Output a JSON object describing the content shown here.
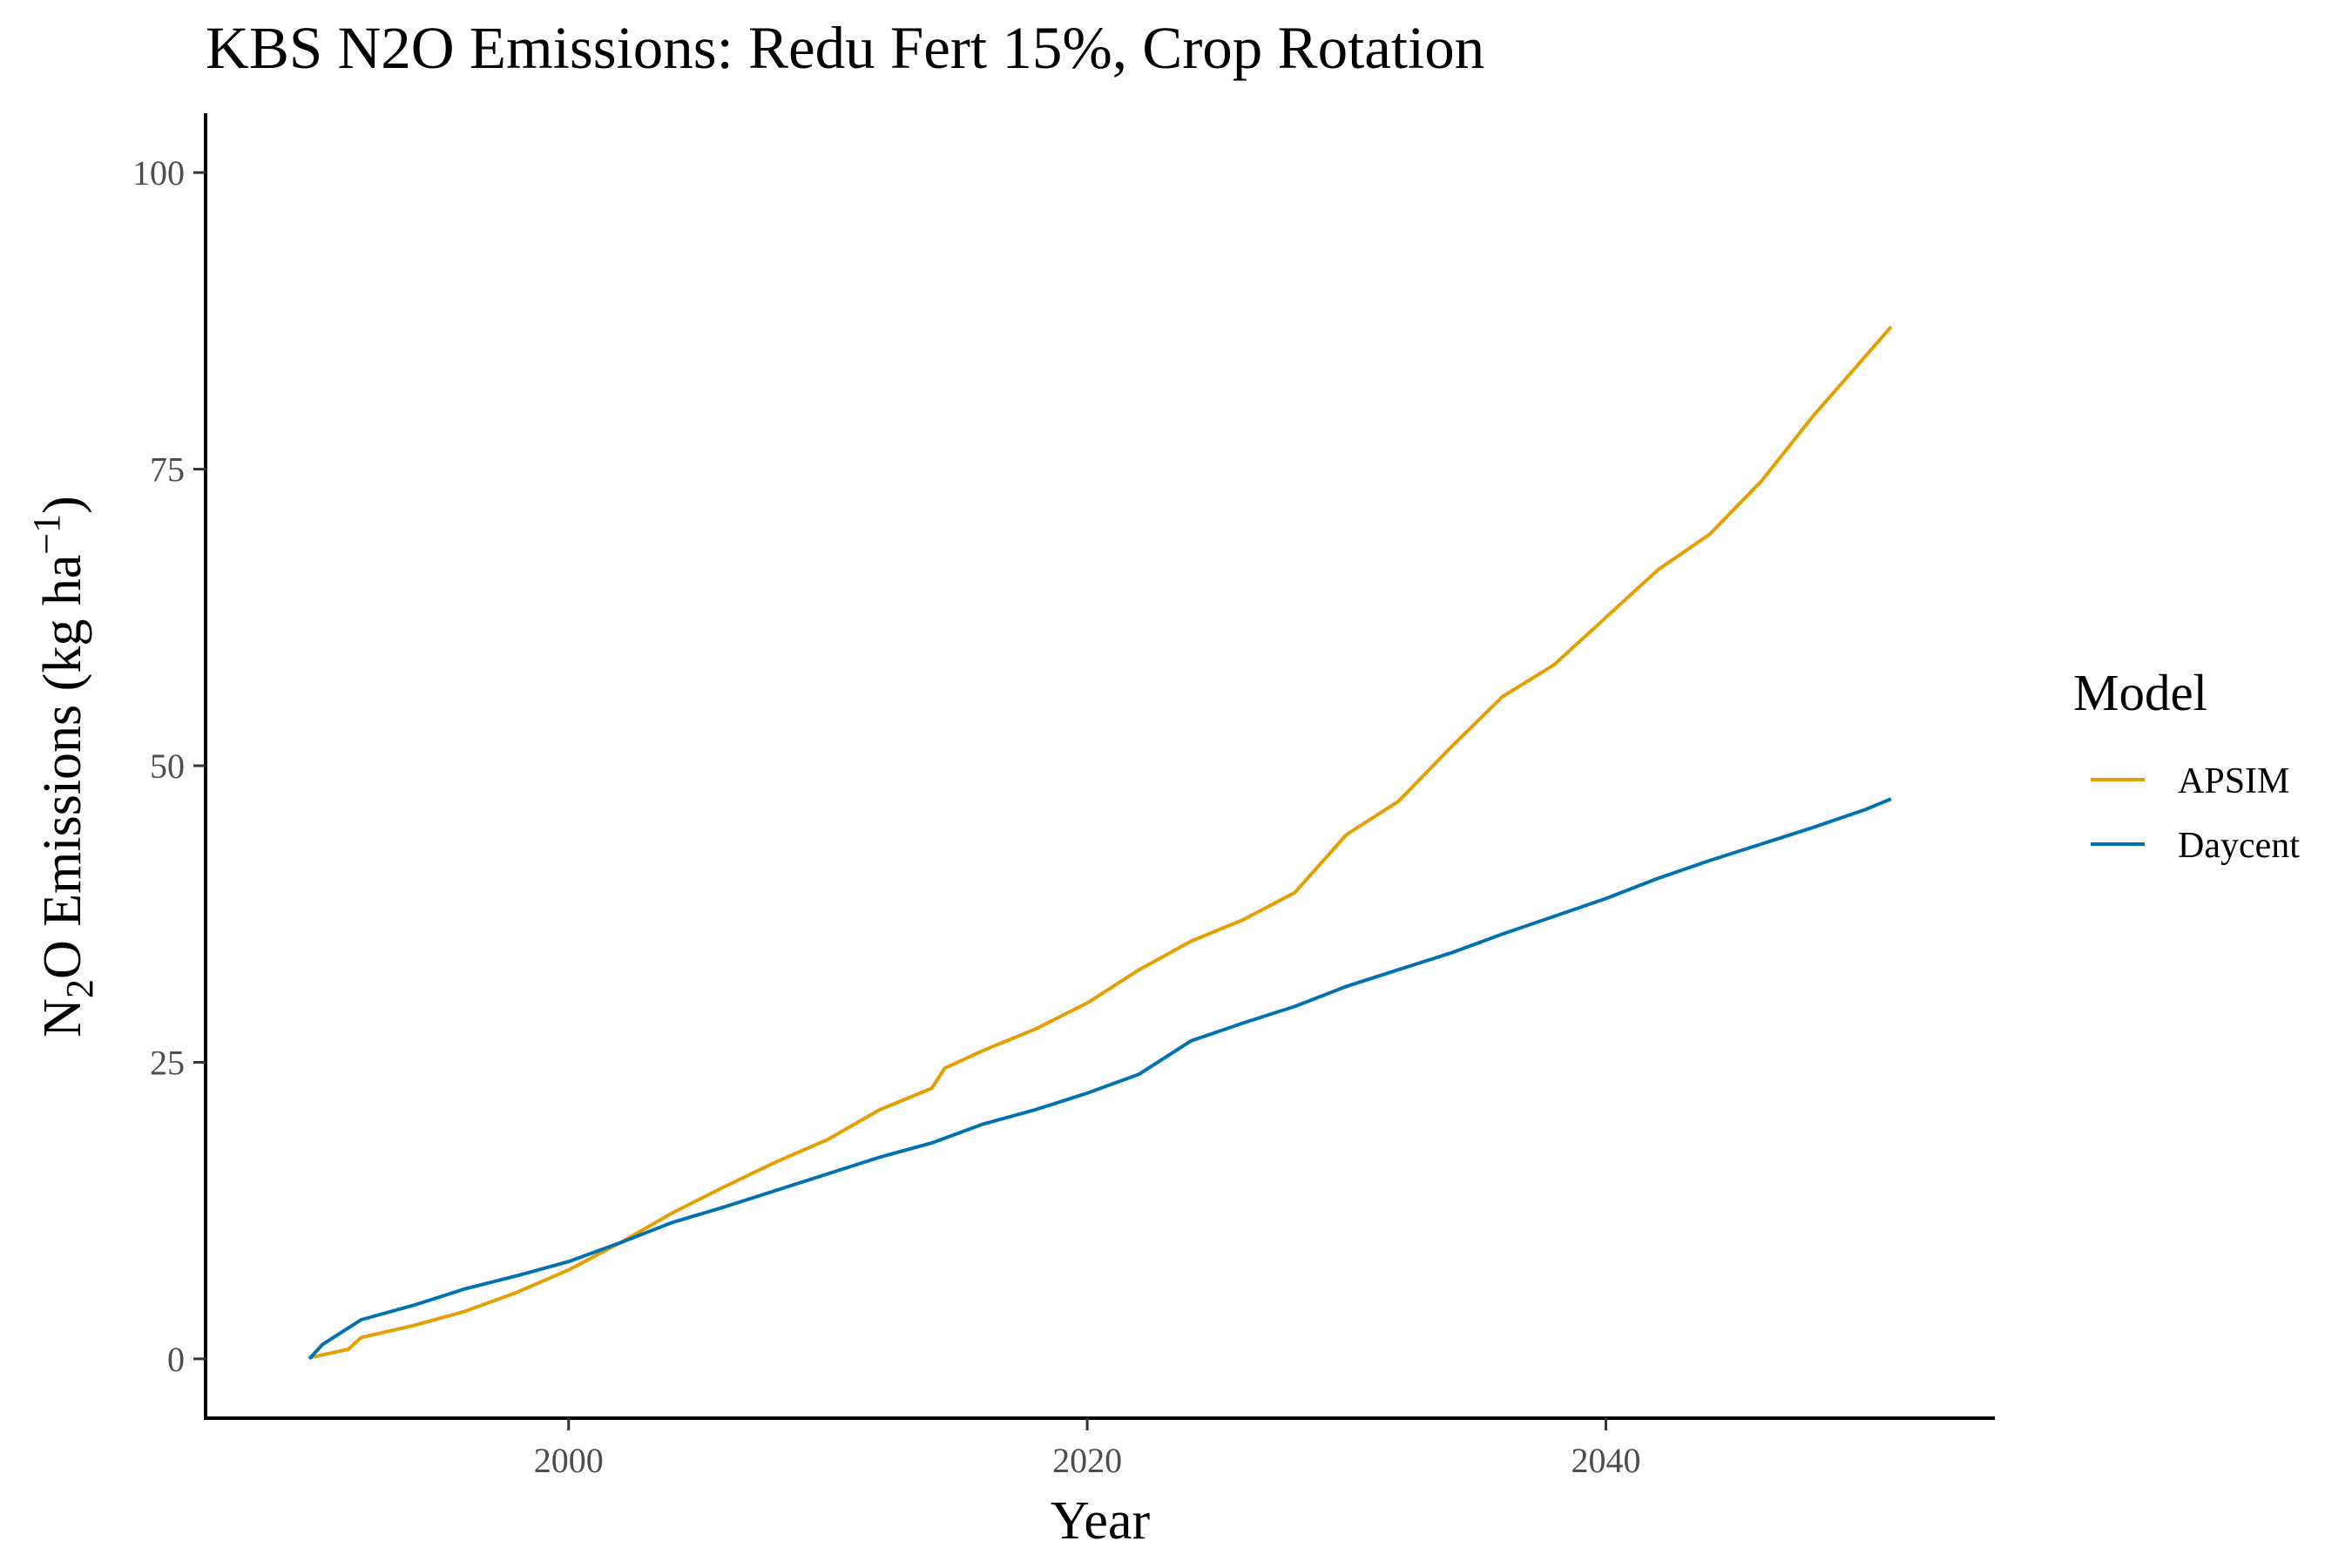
{
  "chart_data": {
    "type": "line",
    "title": "KBS N2O Emissions:  Redu Fert 15%, Crop Rotation",
    "xlabel": "Year",
    "ylabel": {
      "prefix": "N",
      "sub": "2",
      "main": "O Emissions (kg ha",
      "sup": "−1",
      "suffix": ")"
    },
    "xlim": [
      1986,
      2055
    ],
    "ylim": [
      -5,
      105
    ],
    "x_ticks": [
      2000,
      2020,
      2040
    ],
    "y_ticks": [
      0,
      25,
      50,
      75,
      100
    ],
    "grid": false,
    "legend": {
      "title": "Model",
      "placement": "right"
    },
    "series": [
      {
        "name": "APSIM",
        "color": "#E69F00",
        "x": [
          1990,
          1991.5,
          1992,
          1994,
          1996,
          1998,
          2000,
          2002,
          2004,
          2006,
          2008,
          2010,
          2012,
          2014,
          2014.5,
          2016,
          2018,
          2020,
          2022,
          2024,
          2026,
          2028,
          2030,
          2032,
          2034,
          2036,
          2038,
          2040,
          2042,
          2044,
          2046,
          2048,
          2050,
          2051
        ],
        "values": [
          0.1,
          0.8,
          1.8,
          2.8,
          4.0,
          5.6,
          7.5,
          9.8,
          12.3,
          14.5,
          16.6,
          18.5,
          21.0,
          22.8,
          24.5,
          26.0,
          27.8,
          30.0,
          32.8,
          35.2,
          37.0,
          39.3,
          44.2,
          47.0,
          51.5,
          55.8,
          58.5,
          62.5,
          66.5,
          69.5,
          74.0,
          79.5,
          84.5,
          87.0
        ]
      },
      {
        "name": "Daycent",
        "color": "#0072B2",
        "x": [
          1990,
          1990.5,
          1992,
          1994,
          1996,
          1998,
          2000,
          2002,
          2004,
          2006,
          2008,
          2010,
          2012,
          2014,
          2016,
          2018,
          2020,
          2022,
          2024,
          2026,
          2028,
          2030,
          2032,
          2034,
          2036,
          2038,
          2040,
          2042,
          2044,
          2046,
          2048,
          2050,
          2051
        ],
        "values": [
          0.0,
          1.2,
          3.3,
          4.5,
          5.9,
          7.0,
          8.2,
          9.8,
          11.5,
          12.8,
          14.2,
          15.6,
          17.0,
          18.2,
          19.8,
          21.0,
          22.4,
          24.0,
          26.8,
          28.3,
          29.7,
          31.4,
          32.8,
          34.2,
          35.8,
          37.3,
          38.8,
          40.5,
          42.0,
          43.4,
          44.8,
          46.3,
          47.2
        ]
      }
    ]
  }
}
